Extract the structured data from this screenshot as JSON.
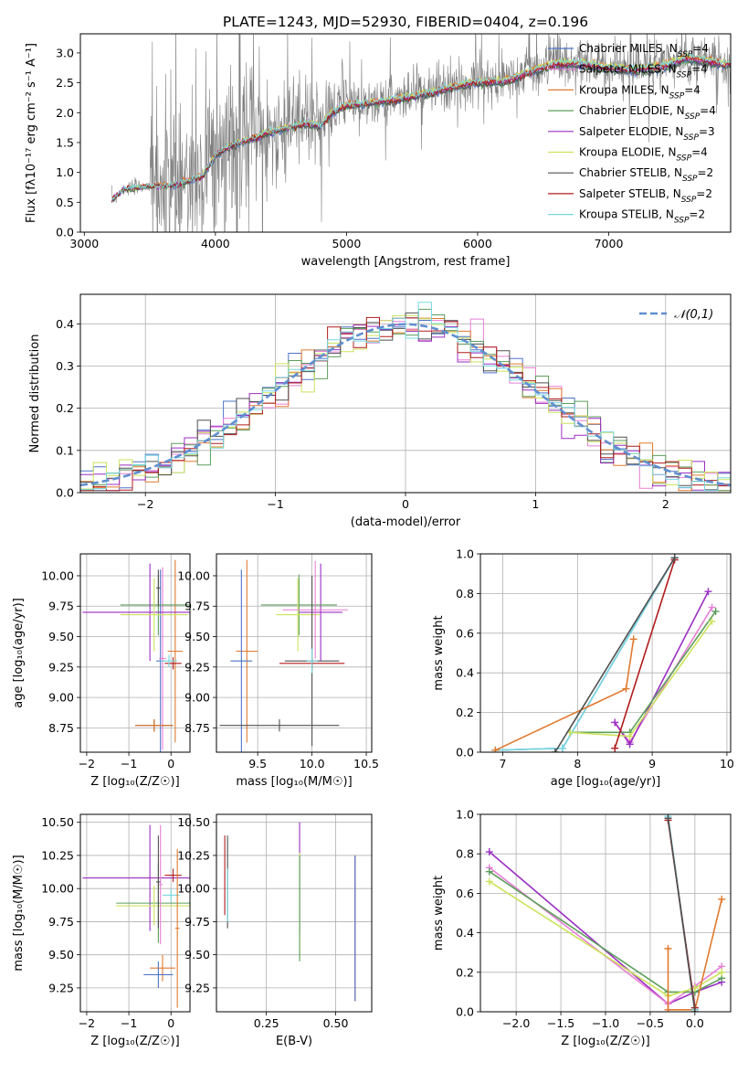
{
  "title": "PLATE=1243, MJD=52930, FIBERID=0404, z=0.196",
  "colors": {
    "chabrier_miles": "#4f74c9",
    "salpeter_miles": "#e87fd6",
    "kroupa_miles": "#e07a2f",
    "chabrier_elodie": "#5c9e5c",
    "salpeter_elodie": "#9b2fc4",
    "kroupa_elodie": "#cce35a",
    "chabrier_stelib": "#505050",
    "salpeter_stelib": "#b01c1c",
    "kroupa_stelib": "#78d8e0",
    "data": "#7f7f7f",
    "normal_curve": "#5f8fd0"
  },
  "legend": {
    "items": [
      {
        "model": "Chabrier MILES",
        "n": "4",
        "color_key": "chabrier_miles"
      },
      {
        "model": "Salpeter MILES",
        "n": "4",
        "color_key": "salpeter_miles"
      },
      {
        "model": "Kroupa MILES",
        "n": "4",
        "color_key": "kroupa_miles"
      },
      {
        "model": "Chabrier ELODIE",
        "n": "4",
        "color_key": "chabrier_elodie"
      },
      {
        "model": "Salpeter ELODIE",
        "n": "3",
        "color_key": "salpeter_elodie"
      },
      {
        "model": "Kroupa ELODIE",
        "n": "4",
        "color_key": "kroupa_elodie"
      },
      {
        "model": "Chabrier STELIB",
        "n": "2",
        "color_key": "chabrier_stelib"
      },
      {
        "model": "Salpeter STELIB",
        "n": "2",
        "color_key": "salpeter_stelib"
      },
      {
        "model": "Kroupa STELIB",
        "n": "2",
        "color_key": "kroupa_stelib"
      }
    ],
    "n_prefix": "N",
    "n_sub": "SSP"
  },
  "chart_data": [
    {
      "id": "spectrum",
      "type": "line",
      "xlabel": "wavelength [Angstrom, rest frame]",
      "ylabel": "Flux [fλ10⁻¹⁷ erg cm⁻² s⁻¹ A⁻¹]",
      "xlim": [
        2970,
        7930
      ],
      "ylim": [
        0,
        3.32
      ],
      "xticks": [
        3000,
        4000,
        5000,
        6000,
        7000
      ],
      "yticks": [
        0.0,
        0.5,
        1.0,
        1.5,
        2.0,
        2.5,
        3.0
      ],
      "data_start": 3210,
      "model_x": [
        3210,
        3300,
        3500,
        3700,
        3900,
        4000,
        4100,
        4300,
        4500,
        4700,
        4800,
        4900,
        5000,
        5200,
        5400,
        5600,
        5800,
        6000,
        6200,
        6400,
        6600,
        6800,
        7000,
        7200,
        7400,
        7600,
        7880
      ],
      "model_y": [
        0.55,
        0.72,
        0.78,
        0.8,
        0.95,
        1.3,
        1.45,
        1.6,
        1.75,
        1.85,
        1.8,
        2.05,
        2.15,
        2.2,
        2.25,
        2.35,
        2.45,
        2.55,
        2.55,
        2.72,
        2.85,
        2.85,
        2.78,
        2.75,
        2.8,
        2.95,
        2.85
      ]
    },
    {
      "id": "residuals",
      "type": "histogram",
      "xlabel": "(data-model)/error",
      "ylabel": "Normed distribution",
      "xlim": [
        -2.5,
        2.5
      ],
      "ylim": [
        0,
        0.47
      ],
      "xticks": [
        -2,
        -1,
        0,
        1,
        2
      ],
      "yticks": [
        0.0,
        0.1,
        0.2,
        0.3,
        0.4
      ],
      "bin_width": 0.1,
      "curve_label": "𝒩(0,1)",
      "grid": true,
      "legend_position": "top-right"
    },
    {
      "id": "age_vs_Z",
      "type": "errorbar",
      "xlabel": "Z [log₁₀(Z/Z☉)]",
      "ylabel": "age  [log₁₀(age/yr)]",
      "xlim": [
        -2.15,
        0.45
      ],
      "ylim": [
        8.55,
        10.18
      ],
      "xticks": [
        -2,
        -1,
        0
      ],
      "yticks": [
        8.75,
        9.0,
        9.25,
        9.5,
        9.75,
        10.0
      ],
      "grid": true,
      "points": [
        {
          "c": "chabrier_miles",
          "x": -0.25,
          "xerr": 0.1,
          "y": 9.3,
          "yerr": 0.75
        },
        {
          "c": "salpeter_miles",
          "x": -0.2,
          "xerr": 0.08,
          "y": 9.32,
          "yerr": 0.75
        },
        {
          "c": "kroupa_miles",
          "x": 0.1,
          "xerr": 0.18,
          "y": 9.38,
          "yerr": 0.75
        },
        {
          "c": "chabrier_elodie",
          "x": -0.3,
          "xerr": 0.9,
          "y": 9.76,
          "yerr": 0.25
        },
        {
          "c": "salpeter_elodie",
          "x": -0.5,
          "xerr": 1.6,
          "y": 9.7,
          "yerr": 0.4
        },
        {
          "c": "kroupa_elodie",
          "x": -0.4,
          "xerr": 0.8,
          "y": 9.68,
          "yerr": 0.3
        },
        {
          "c": "chabrier_stelib",
          "x": -0.3,
          "xerr": 0.05,
          "y": 9.9,
          "yerr": 0.15
        },
        {
          "c": "salpeter_stelib",
          "x": 0.05,
          "xerr": 0.2,
          "y": 9.28,
          "yerr": 0.05
        },
        {
          "c": "kroupa_stelib",
          "x": -0.05,
          "xerr": 0.2,
          "y": 9.3,
          "yerr": 0.05
        },
        {
          "c": "chabrier_stelib",
          "x": -0.4,
          "xerr": 0.45,
          "y": 8.77,
          "yerr": 0.05
        },
        {
          "c": "kroupa_miles",
          "x": -0.4,
          "xerr": 0.45,
          "y": 8.77,
          "yerr": 0.05
        }
      ]
    },
    {
      "id": "age_vs_mass",
      "type": "errorbar",
      "xlabel": "mass [log₁₀(M/M☉)]",
      "ylabel": "",
      "xlim": [
        9.12,
        10.55
      ],
      "ylim": [
        8.55,
        10.18
      ],
      "xticks": [
        9.5,
        10.0,
        10.5
      ],
      "yticks": [
        8.75,
        9.0,
        9.25,
        9.5,
        9.75,
        10.0
      ],
      "grid": true,
      "points": [
        {
          "c": "salpeter_elodie",
          "x": 10.08,
          "xerr": 0.2,
          "y": 9.7,
          "yerr": 0.4
        },
        {
          "c": "chabrier_elodie",
          "x": 9.88,
          "xerr": 0.35,
          "y": 9.76,
          "yerr": 0.25
        },
        {
          "c": "kroupa_elodie",
          "x": 9.87,
          "xerr": 0.2,
          "y": 9.68,
          "yerr": 0.3
        },
        {
          "c": "salpeter_miles",
          "x": 10.03,
          "xerr": 0.3,
          "y": 9.72,
          "yerr": 0.4
        },
        {
          "c": "chabrier_stelib",
          "x": 10.0,
          "xerr": 0.25,
          "y": 9.3,
          "yerr": 0.7
        },
        {
          "c": "salpeter_stelib",
          "x": 10.0,
          "xerr": 0.3,
          "y": 9.28,
          "yerr": 0.05
        },
        {
          "c": "kroupa_stelib",
          "x": 10.0,
          "xerr": 0.05,
          "y": 9.3,
          "yerr": 0.1
        },
        {
          "c": "kroupa_miles",
          "x": 9.4,
          "xerr": 0.1,
          "y": 9.38,
          "yerr": 0.75
        },
        {
          "c": "chabrier_miles",
          "x": 9.35,
          "xerr": 0.1,
          "y": 9.3,
          "yerr": 0.75
        },
        {
          "c": "chabrier_stelib",
          "x": 9.7,
          "xerr": 0.55,
          "y": 8.77,
          "yerr": 0.05
        }
      ]
    },
    {
      "id": "weight_vs_age",
      "type": "line",
      "xlabel": "age  [log₁₀(age/yr)]",
      "ylabel": "mass weight",
      "xlim": [
        6.7,
        10.05
      ],
      "ylim": [
        0,
        1.0
      ],
      "xticks": [
        7,
        8,
        9,
        10
      ],
      "yticks": [
        0.0,
        0.2,
        0.4,
        0.6,
        0.8,
        1.0
      ],
      "grid": true,
      "series": [
        {
          "c": "chabrier_miles",
          "x": [
            6.9,
            7.8,
            9.3
          ],
          "y": [
            0.01,
            0.02,
            0.98
          ]
        },
        {
          "c": "kroupa_stelib",
          "x": [
            6.9,
            7.8,
            9.3
          ],
          "y": [
            0.01,
            0.02,
            0.98
          ]
        },
        {
          "c": "salpeter_miles",
          "x": [
            8.5,
            8.7,
            9.8
          ],
          "y": [
            0.15,
            0.05,
            0.73
          ]
        },
        {
          "c": "salpeter_elodie",
          "x": [
            8.5,
            8.7,
            9.75
          ],
          "y": [
            0.15,
            0.04,
            0.81
          ]
        },
        {
          "c": "kroupa_miles",
          "x": [
            6.9,
            8.65,
            8.75
          ],
          "y": [
            0.01,
            0.32,
            0.57
          ]
        },
        {
          "c": "chabrier_elodie",
          "x": [
            7.9,
            8.7,
            9.85
          ],
          "y": [
            0.1,
            0.1,
            0.71
          ]
        },
        {
          "c": "kroupa_elodie",
          "x": [
            7.9,
            8.7,
            9.8
          ],
          "y": [
            0.1,
            0.08,
            0.66
          ]
        },
        {
          "c": "salpeter_stelib",
          "x": [
            8.5,
            9.3
          ],
          "y": [
            0.02,
            0.97
          ]
        },
        {
          "c": "chabrier_stelib",
          "x": [
            7.7,
            9.3
          ],
          "y": [
            0.0,
            0.98
          ]
        }
      ]
    },
    {
      "id": "mass_vs_Z",
      "type": "errorbar",
      "xlabel": "Z [log₁₀(Z/Z☉)]",
      "ylabel": "mass [log₁₀(M/M☉)]",
      "xlim": [
        -2.15,
        0.45
      ],
      "ylim": [
        9.07,
        10.56
      ],
      "xticks": [
        -2,
        -1,
        0
      ],
      "yticks": [
        9.25,
        9.5,
        9.75,
        10.0,
        10.25,
        10.5
      ],
      "grid": true,
      "points": [
        {
          "c": "salpeter_elodie",
          "x": -0.5,
          "xerr": 1.6,
          "y": 10.08,
          "yerr": 0.4
        },
        {
          "c": "chabrier_elodie",
          "x": -0.3,
          "xerr": 1.0,
          "y": 9.89,
          "yerr": 0.3
        },
        {
          "c": "kroupa_elodie",
          "x": -0.4,
          "xerr": 0.9,
          "y": 9.87,
          "yerr": 0.15
        },
        {
          "c": "salpeter_miles",
          "x": -0.25,
          "xerr": 0.05,
          "y": 10.03,
          "yerr": 0.45
        },
        {
          "c": "chabrier_stelib",
          "x": -0.3,
          "xerr": 0.05,
          "y": 10.05,
          "yerr": 0.35
        },
        {
          "c": "salpeter_stelib",
          "x": 0.05,
          "xerr": 0.2,
          "y": 10.1,
          "yerr": 0.05
        },
        {
          "c": "kroupa_stelib",
          "x": 0.0,
          "xerr": 0.2,
          "y": 9.95,
          "yerr": 0.05
        },
        {
          "c": "kroupa_miles",
          "x": -0.2,
          "xerr": 0.3,
          "y": 9.4,
          "yerr": 0.1
        },
        {
          "c": "chabrier_miles",
          "x": -0.3,
          "xerr": 0.35,
          "y": 9.35,
          "yerr": 0.1
        },
        {
          "c": "kroupa_miles",
          "x": 0.15,
          "xerr": 0.05,
          "y": 9.7,
          "yerr": 0.6
        }
      ]
    },
    {
      "id": "mass_vs_EBV",
      "type": "errorbar",
      "xlabel": "E(B-V)",
      "ylabel": "",
      "xlim": [
        0.07,
        0.63
      ],
      "ylim": [
        9.07,
        10.56
      ],
      "xticks": [
        0.25,
        0.5
      ],
      "yticks": [
        9.25,
        9.5,
        9.75,
        10.0,
        10.25,
        10.5
      ],
      "grid": true,
      "points": [
        {
          "c": "salpeter_elodie",
          "x": 0.37,
          "y": 10.08,
          "yerr": 0.42
        },
        {
          "c": "kroupa_elodie",
          "x": 0.37,
          "y": 9.87,
          "yerr": 0.4
        },
        {
          "c": "chabrier_elodie",
          "x": 0.37,
          "y": 9.85,
          "yerr": 0.4
        },
        {
          "c": "chabrier_stelib",
          "x": 0.11,
          "y": 10.05,
          "yerr": 0.35
        },
        {
          "c": "salpeter_stelib",
          "x": 0.1,
          "y": 10.1,
          "yerr": 0.3
        },
        {
          "c": "kroupa_stelib",
          "x": 0.11,
          "y": 9.95,
          "yerr": 0.2
        },
        {
          "c": "kroupa_miles",
          "x": 0.57,
          "y": 9.7,
          "yerr": 0.55
        },
        {
          "c": "salpeter_miles",
          "x": 0.57,
          "y": 9.75,
          "yerr": 0.5
        },
        {
          "c": "chabrier_miles",
          "x": 0.57,
          "y": 9.7,
          "yerr": 0.55
        }
      ]
    },
    {
      "id": "weight_vs_Z",
      "type": "line",
      "xlabel": "Z [log₁₀(Z/Z☉)]",
      "ylabel": "mass weight",
      "xlim": [
        -2.4,
        0.4
      ],
      "ylim": [
        0,
        1.0
      ],
      "xticks": [
        -2.0,
        -1.5,
        -1.0,
        -0.5,
        0.0
      ],
      "yticks": [
        0.0,
        0.2,
        0.4,
        0.6,
        0.8,
        1.0
      ],
      "grid": true,
      "series": [
        {
          "c": "salpeter_elodie",
          "x": [
            -2.3,
            -0.3,
            0.0,
            0.3
          ],
          "y": [
            0.81,
            0.04,
            0.1,
            0.15
          ]
        },
        {
          "c": "salpeter_miles",
          "x": [
            -2.3,
            -0.3,
            0.0,
            0.3
          ],
          "y": [
            0.73,
            0.04,
            0.13,
            0.23
          ]
        },
        {
          "c": "chabrier_elodie",
          "x": [
            -2.3,
            -0.3,
            0.0,
            0.3
          ],
          "y": [
            0.71,
            0.1,
            0.1,
            0.17
          ]
        },
        {
          "c": "kroupa_elodie",
          "x": [
            -2.3,
            -0.3,
            0.0,
            0.3
          ],
          "y": [
            0.66,
            0.08,
            0.12,
            0.2
          ]
        },
        {
          "c": "kroupa_miles",
          "x": [
            -0.3,
            -0.3,
            0.0,
            0.3
          ],
          "y": [
            0.32,
            0.01,
            0.01,
            0.57
          ]
        },
        {
          "c": "chabrier_miles",
          "x": [
            -0.3,
            0.0
          ],
          "y": [
            0.98,
            0.01
          ]
        },
        {
          "c": "kroupa_stelib",
          "x": [
            -0.3,
            0.0
          ],
          "y": [
            0.99,
            0.01
          ]
        },
        {
          "c": "salpeter_stelib",
          "x": [
            -0.3,
            0.0
          ],
          "y": [
            0.97,
            0.02
          ]
        },
        {
          "c": "chabrier_stelib",
          "x": [
            -0.3,
            0.0
          ],
          "y": [
            0.98,
            0.0
          ]
        }
      ]
    }
  ]
}
